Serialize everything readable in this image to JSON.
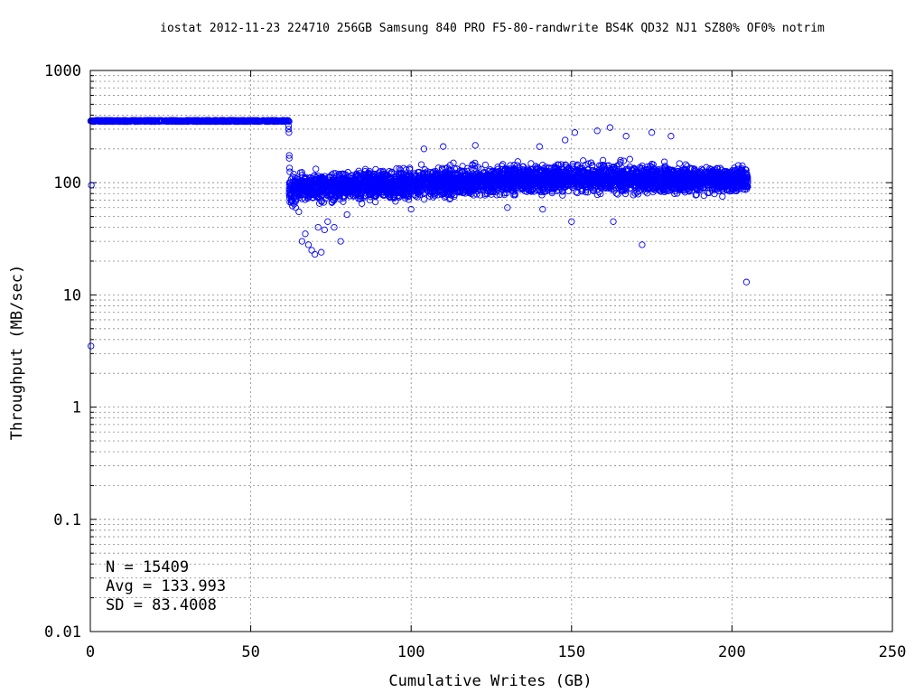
{
  "chart_data": {
    "type": "scatter",
    "title": "iostat 2012-11-23 224710 256GB Samsung 840 PRO F5-80-randwrite BS4K QD32 NJ1 SZ80% OF0% notrim",
    "xlabel": "Cumulative Writes (GB)",
    "ylabel": "Throughput (MB/sec)",
    "xlim": [
      0,
      250
    ],
    "ylim": [
      0.01,
      1000
    ],
    "yscale": "log",
    "grid": true,
    "marker": "open-circle",
    "color": "#0000ff",
    "x_ticks": [
      "0",
      "50",
      "100",
      "150",
      "200",
      "250"
    ],
    "x_tick_values": [
      0,
      50,
      100,
      150,
      200,
      250
    ],
    "y_ticks": [
      "0.01",
      "0.1",
      "1",
      "10",
      "100",
      "1000"
    ],
    "y_tick_values": [
      0.01,
      0.1,
      1,
      10,
      100,
      1000
    ],
    "stats": {
      "n": "N = 15409",
      "avg": "Avg = 133.993",
      "sd": "SD = 83.4008"
    },
    "series": [
      {
        "segments": [
          {
            "x_range": [
              0,
              62
            ],
            "y_center": 355,
            "y_spread": 10
          },
          {
            "x_range": [
              62,
              205
            ],
            "y_start": 88,
            "y_peak": 110,
            "y_end": 105,
            "y_spread_factor": 1.3
          }
        ],
        "outliers": [
          {
            "x": 0.2,
            "y": 3.5
          },
          {
            "x": 0.3,
            "y": 95
          },
          {
            "x": 61.8,
            "y": 320
          },
          {
            "x": 61.8,
            "y": 300
          },
          {
            "x": 61.9,
            "y": 280
          },
          {
            "x": 62,
            "y": 175
          },
          {
            "x": 62,
            "y": 165
          },
          {
            "x": 62.1,
            "y": 135
          },
          {
            "x": 62.2,
            "y": 125
          },
          {
            "x": 66,
            "y": 30
          },
          {
            "x": 67,
            "y": 35
          },
          {
            "x": 68,
            "y": 28
          },
          {
            "x": 69,
            "y": 25
          },
          {
            "x": 70,
            "y": 23
          },
          {
            "x": 71,
            "y": 40
          },
          {
            "x": 72,
            "y": 24
          },
          {
            "x": 73,
            "y": 38
          },
          {
            "x": 74,
            "y": 45
          },
          {
            "x": 76,
            "y": 40
          },
          {
            "x": 78,
            "y": 30
          },
          {
            "x": 80,
            "y": 52
          },
          {
            "x": 64,
            "y": 60
          },
          {
            "x": 65,
            "y": 55
          },
          {
            "x": 63,
            "y": 62
          },
          {
            "x": 100,
            "y": 58
          },
          {
            "x": 130,
            "y": 60
          },
          {
            "x": 141,
            "y": 58
          },
          {
            "x": 150,
            "y": 45
          },
          {
            "x": 163,
            "y": 45
          },
          {
            "x": 172,
            "y": 28
          },
          {
            "x": 204.5,
            "y": 13
          },
          {
            "x": 140,
            "y": 210
          },
          {
            "x": 148,
            "y": 240
          },
          {
            "x": 151,
            "y": 280
          },
          {
            "x": 158,
            "y": 290
          },
          {
            "x": 162,
            "y": 310
          },
          {
            "x": 167,
            "y": 260
          },
          {
            "x": 175,
            "y": 280
          },
          {
            "x": 181,
            "y": 260
          },
          {
            "x": 120,
            "y": 215
          },
          {
            "x": 104,
            "y": 200
          },
          {
            "x": 110,
            "y": 210
          }
        ]
      }
    ]
  }
}
